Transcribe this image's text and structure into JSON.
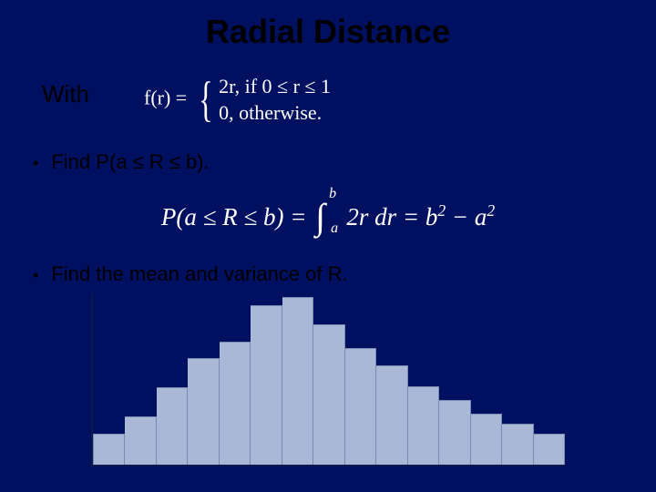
{
  "title": "Radial Distance",
  "with_label": "With",
  "pdf": {
    "lhs": "f(r) =",
    "row1_val": "2r,",
    "row1_cond": "if 0 ≤ r ≤ 1",
    "row2_val": "0,",
    "row2_cond": "otherwise."
  },
  "bullet1": "Find P(a ≤ R ≤ b).",
  "bullet2": "Find the mean and variance of R.",
  "equation": {
    "lhs": "P(a ≤ R ≤ b) =",
    "int_lower": "a",
    "int_upper": "b",
    "integrand": "2r dr",
    "rhs_eq": "= b",
    "sup1": "2",
    "minus": " − a",
    "sup2": "2"
  },
  "histogram": {
    "type": "histogram",
    "bar_heights_pct": [
      18,
      28,
      45,
      62,
      72,
      93,
      98,
      82,
      68,
      58,
      46,
      38,
      30,
      24,
      18
    ],
    "bar_fill": "#aab8d8",
    "bar_border": "#7a8ab0",
    "axis_color": "#0a1a4a",
    "background": "#001060"
  },
  "colors": {
    "slide_bg": "#001060",
    "title_color": "#000000",
    "body_text": "#000000",
    "formula_text": "#ffffff"
  }
}
